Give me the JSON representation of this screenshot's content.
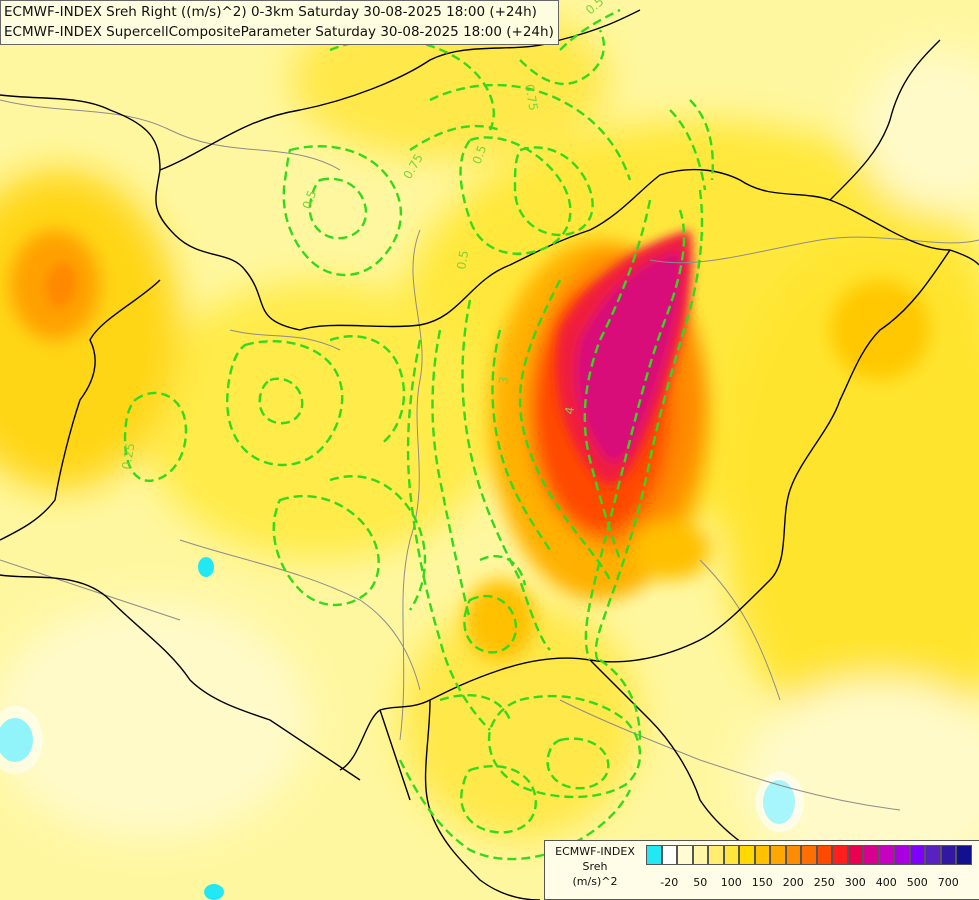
{
  "header": {
    "line1": "ECMWF-INDEX Sreh Right ((m/s)^2) 0-3km Saturday 30-08-2025 18:00 (+24h)",
    "line2": "ECMWF-INDEX SupercellCompositeParameter Saturday 30-08-2025 18:00 (+24h)"
  },
  "legend": {
    "line1": "ECMWF-INDEX",
    "line2": "Sreh",
    "line3": "(m/s)^2",
    "colors": [
      "#22e8f5",
      "#ffffff",
      "#fffbd2",
      "#fff6a8",
      "#ffee70",
      "#ffe63c",
      "#ffd800",
      "#ffc000",
      "#ffa600",
      "#ff8c00",
      "#ff6e00",
      "#ff4a00",
      "#ff1e1e",
      "#ea0050",
      "#d80090",
      "#c800c0",
      "#a800e0",
      "#8000ff",
      "#5a20c0",
      "#3218a0",
      "#101090"
    ],
    "ticks": [
      "-20",
      "50",
      "100",
      "150",
      "200",
      "250",
      "300",
      "400",
      "500",
      "700"
    ]
  },
  "contour_labels": [
    "0.5",
    "0.75",
    "0.5",
    "0.75",
    "0.5",
    "3",
    "4",
    "0.25",
    "0.5"
  ],
  "colors": {
    "background": "#fff9b0",
    "contour": "#33d91c",
    "border": "#000000",
    "river": "#7a7a7a"
  }
}
